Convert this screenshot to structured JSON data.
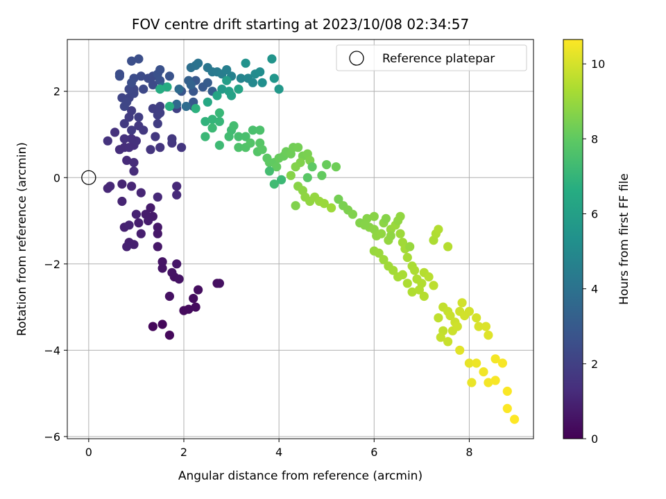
{
  "chart_data": {
    "type": "scatter",
    "title": "FOV centre drift starting at 2023/10/08 02:34:57",
    "xlabel": "Angular distance from reference (arcmin)",
    "ylabel": "Rotation from reference (arcmin)",
    "xlim": [
      -0.45,
      9.35
    ],
    "ylim": [
      -6.05,
      3.2
    ],
    "xticks": [
      0,
      2,
      4,
      6,
      8
    ],
    "yticks": [
      -6,
      -4,
      -2,
      0,
      2
    ],
    "xtick_labels": [
      "0",
      "2",
      "4",
      "6",
      "8"
    ],
    "ytick_labels": [
      "−6",
      "−4",
      "−2",
      "0",
      "2"
    ],
    "grid": true,
    "legend": {
      "position": "top-right",
      "entries": [
        "Reference platepar"
      ]
    },
    "colormap": "viridis",
    "colorbar": {
      "label": "Hours from first FF file",
      "range": [
        0,
        10.65
      ],
      "ticks": [
        0,
        2,
        4,
        6,
        8,
        10
      ],
      "tick_labels": [
        "0",
        "2",
        "4",
        "6",
        "8",
        "10"
      ]
    },
    "reference_point": {
      "x": 0,
      "y": 0
    },
    "points": [
      [
        1.35,
        -3.45,
        0.2
      ],
      [
        1.55,
        -3.4,
        0.2
      ],
      [
        1.7,
        -3.65,
        0.25
      ],
      [
        2.0,
        -3.08,
        0.3
      ],
      [
        2.1,
        -3.05,
        0.3
      ],
      [
        2.2,
        -2.8,
        0.35
      ],
      [
        2.25,
        -3.0,
        0.35
      ],
      [
        2.3,
        -2.6,
        0.4
      ],
      [
        2.7,
        -2.45,
        0.4
      ],
      [
        2.75,
        -2.45,
        0.45
      ],
      [
        1.7,
        -2.75,
        0.5
      ],
      [
        1.8,
        -2.3,
        0.5
      ],
      [
        1.9,
        -2.35,
        0.55
      ],
      [
        1.75,
        -2.2,
        0.55
      ],
      [
        1.55,
        -2.1,
        0.6
      ],
      [
        1.55,
        -1.95,
        0.6
      ],
      [
        1.85,
        -2.0,
        0.65
      ],
      [
        1.45,
        -1.6,
        0.7
      ],
      [
        1.45,
        -1.3,
        0.7
      ],
      [
        1.45,
        -1.15,
        0.75
      ],
      [
        1.35,
        -0.9,
        0.8
      ],
      [
        1.3,
        -0.7,
        0.8
      ],
      [
        1.2,
        -0.85,
        0.85
      ],
      [
        1.25,
        -1.0,
        0.85
      ],
      [
        1.05,
        -1.05,
        0.9
      ],
      [
        1.1,
        -1.3,
        0.9
      ],
      [
        0.95,
        -1.55,
        0.95
      ],
      [
        0.85,
        -1.5,
        0.95
      ],
      [
        0.8,
        -1.6,
        1.0
      ],
      [
        0.75,
        -1.15,
        1.0
      ],
      [
        0.85,
        -1.1,
        1.05
      ],
      [
        1.0,
        -0.85,
        1.05
      ],
      [
        0.7,
        -0.55,
        1.1
      ],
      [
        0.7,
        -0.15,
        1.1
      ],
      [
        0.9,
        -0.2,
        1.15
      ],
      [
        1.1,
        -0.35,
        1.15
      ],
      [
        0.45,
        -0.2,
        1.2
      ],
      [
        0.4,
        -0.25,
        1.2
      ],
      [
        1.45,
        -0.45,
        1.25
      ],
      [
        1.85,
        -0.2,
        1.25
      ],
      [
        1.85,
        -0.4,
        1.3
      ],
      [
        0.8,
        0.4,
        1.3
      ],
      [
        0.95,
        0.35,
        1.35
      ],
      [
        0.95,
        0.15,
        1.35
      ],
      [
        0.65,
        0.65,
        1.4
      ],
      [
        0.75,
        0.7,
        1.4
      ],
      [
        0.85,
        0.7,
        1.45
      ],
      [
        0.95,
        0.75,
        1.45
      ],
      [
        1.0,
        0.85,
        1.5
      ],
      [
        0.9,
        0.9,
        1.5
      ],
      [
        0.75,
        0.9,
        1.55
      ],
      [
        0.55,
        1.05,
        1.55
      ],
      [
        0.4,
        0.85,
        1.6
      ],
      [
        1.3,
        0.65,
        1.65
      ],
      [
        1.5,
        0.7,
        1.65
      ],
      [
        1.95,
        0.7,
        1.7
      ],
      [
        1.75,
        0.8,
        1.7
      ],
      [
        1.75,
        0.9,
        1.75
      ],
      [
        1.4,
        0.95,
        1.75
      ],
      [
        1.15,
        1.1,
        1.8
      ],
      [
        1.05,
        1.2,
        1.8
      ],
      [
        0.9,
        1.1,
        1.85
      ],
      [
        0.75,
        1.25,
        1.85
      ],
      [
        0.85,
        1.4,
        1.9
      ],
      [
        0.9,
        1.55,
        1.9
      ],
      [
        1.05,
        1.4,
        1.95
      ],
      [
        1.45,
        1.25,
        1.95
      ],
      [
        1.45,
        1.45,
        2.0
      ],
      [
        1.35,
        1.6,
        2.0
      ],
      [
        1.5,
        1.65,
        2.05
      ],
      [
        1.5,
        1.5,
        2.05
      ],
      [
        1.85,
        1.6,
        2.1
      ],
      [
        2.2,
        1.65,
        2.15
      ],
      [
        0.85,
        1.85,
        2.2
      ],
      [
        0.7,
        1.85,
        2.2
      ],
      [
        0.75,
        1.65,
        2.25
      ],
      [
        0.8,
        1.75,
        2.25
      ],
      [
        0.95,
        1.95,
        2.3
      ],
      [
        0.95,
        2.05,
        2.3
      ],
      [
        0.85,
        2.05,
        2.35
      ],
      [
        1.15,
        2.05,
        2.35
      ],
      [
        1.35,
        2.15,
        2.4
      ],
      [
        1.25,
        2.3,
        2.4
      ],
      [
        1.35,
        2.35,
        2.45
      ],
      [
        1.1,
        2.35,
        2.45
      ],
      [
        0.95,
        2.3,
        2.5
      ],
      [
        0.65,
        2.4,
        2.5
      ],
      [
        0.65,
        2.35,
        2.55
      ],
      [
        0.9,
        2.2,
        2.55
      ],
      [
        0.9,
        2.7,
        2.6
      ],
      [
        1.05,
        2.75,
        2.6
      ],
      [
        1.45,
        2.4,
        2.65
      ],
      [
        1.5,
        2.5,
        2.65
      ],
      [
        1.5,
        2.25,
        2.7
      ],
      [
        1.7,
        2.35,
        2.75
      ],
      [
        1.95,
        2.0,
        2.8
      ],
      [
        2.2,
        2.0,
        2.85
      ],
      [
        2.2,
        1.75,
        2.9
      ],
      [
        2.25,
        2.25,
        2.95
      ],
      [
        2.4,
        2.1,
        3.0
      ],
      [
        2.5,
        2.2,
        3.1
      ],
      [
        2.6,
        2.0,
        3.2
      ],
      [
        2.1,
        2.25,
        3.3
      ],
      [
        2.15,
        2.15,
        3.4
      ],
      [
        1.55,
        2.1,
        3.5
      ],
      [
        1.85,
        1.7,
        3.6
      ],
      [
        1.9,
        2.05,
        3.7
      ],
      [
        2.05,
        1.65,
        3.8
      ],
      [
        2.15,
        2.55,
        3.9
      ],
      [
        2.25,
        2.6,
        4.0
      ],
      [
        2.3,
        2.65,
        4.1
      ],
      [
        2.5,
        2.55,
        4.2
      ],
      [
        2.6,
        2.45,
        4.3
      ],
      [
        2.7,
        2.45,
        4.4
      ],
      [
        2.8,
        2.4,
        4.5
      ],
      [
        2.9,
        2.5,
        4.6
      ],
      [
        3.0,
        2.35,
        4.7
      ],
      [
        3.2,
        2.3,
        4.8
      ],
      [
        3.35,
        2.3,
        4.9
      ],
      [
        3.45,
        2.2,
        5.0
      ],
      [
        3.5,
        2.4,
        5.1
      ],
      [
        3.6,
        2.45,
        5.2
      ],
      [
        3.65,
        2.2,
        5.3
      ],
      [
        3.3,
        2.65,
        5.4
      ],
      [
        3.85,
        2.75,
        5.5
      ],
      [
        3.9,
        2.3,
        5.6
      ],
      [
        4.0,
        2.05,
        5.7
      ],
      [
        2.8,
        2.05,
        5.8
      ],
      [
        2.9,
        2.25,
        5.9
      ],
      [
        2.95,
        2.0,
        6.0
      ],
      [
        3.0,
        1.9,
        6.1
      ],
      [
        3.15,
        2.05,
        6.2
      ],
      [
        2.7,
        1.9,
        6.3
      ],
      [
        2.5,
        1.75,
        6.4
      ],
      [
        1.65,
        2.1,
        6.5
      ],
      [
        1.5,
        2.05,
        6.6
      ],
      [
        1.7,
        1.65,
        6.7
      ],
      [
        2.25,
        1.6,
        6.8
      ],
      [
        2.45,
        1.3,
        6.9
      ],
      [
        2.6,
        1.35,
        7.0
      ],
      [
        2.75,
        1.3,
        7.05
      ],
      [
        2.75,
        1.5,
        7.1
      ],
      [
        2.45,
        0.95,
        7.15
      ],
      [
        2.6,
        1.15,
        7.2
      ],
      [
        2.75,
        0.75,
        7.25
      ],
      [
        3.0,
        1.1,
        7.3
      ],
      [
        2.95,
        0.95,
        7.35
      ],
      [
        3.05,
        1.2,
        7.4
      ],
      [
        3.15,
        0.95,
        7.45
      ],
      [
        3.3,
        0.95,
        7.5
      ],
      [
        3.45,
        1.1,
        7.55
      ],
      [
        3.6,
        1.1,
        7.6
      ],
      [
        3.15,
        0.7,
        7.65
      ],
      [
        3.3,
        0.7,
        7.7
      ],
      [
        3.4,
        0.8,
        7.75
      ],
      [
        3.55,
        0.6,
        7.8
      ],
      [
        3.6,
        0.8,
        7.85
      ],
      [
        3.65,
        0.65,
        7.9
      ],
      [
        3.75,
        0.45,
        7.95
      ],
      [
        3.8,
        0.35,
        8.0
      ],
      [
        3.9,
        0.35,
        8.05
      ],
      [
        3.95,
        0.25,
        8.1
      ],
      [
        4.0,
        0.45,
        8.15
      ],
      [
        4.1,
        0.5,
        8.2
      ],
      [
        4.15,
        0.6,
        8.25
      ],
      [
        4.25,
        0.55,
        8.3
      ],
      [
        4.3,
        0.7,
        8.35
      ],
      [
        4.4,
        0.7,
        8.4
      ],
      [
        4.5,
        0.5,
        8.45
      ],
      [
        4.6,
        0.55,
        8.5
      ],
      [
        4.65,
        0.4,
        8.55
      ],
      [
        4.45,
        0.35,
        8.6
      ],
      [
        4.35,
        0.25,
        8.65
      ],
      [
        4.25,
        0.05,
        8.7
      ],
      [
        4.4,
        -0.2,
        8.75
      ],
      [
        4.5,
        -0.3,
        8.8
      ],
      [
        4.55,
        -0.45,
        8.85
      ],
      [
        4.65,
        -0.55,
        8.9
      ],
      [
        4.75,
        -0.45,
        8.95
      ],
      [
        4.85,
        -0.55,
        9.0
      ],
      [
        4.95,
        -0.6,
        9.05
      ],
      [
        5.1,
        -0.7,
        9.1
      ],
      [
        4.05,
        -0.05,
        7.2
      ],
      [
        3.9,
        -0.15,
        7.3
      ],
      [
        3.8,
        0.15,
        7.4
      ],
      [
        4.35,
        -0.65,
        8.6
      ],
      [
        4.6,
        0.0,
        7.9
      ],
      [
        4.7,
        0.25,
        8.0
      ],
      [
        4.9,
        0.05,
        8.1
      ],
      [
        5.0,
        0.3,
        8.2
      ],
      [
        5.2,
        0.25,
        8.3
      ],
      [
        5.25,
        -0.5,
        8.4
      ],
      [
        5.35,
        -0.65,
        8.5
      ],
      [
        5.45,
        -0.75,
        8.55
      ],
      [
        5.55,
        -0.85,
        8.6
      ],
      [
        5.7,
        -1.05,
        8.65
      ],
      [
        5.85,
        -0.95,
        8.7
      ],
      [
        5.9,
        -1.15,
        8.75
      ],
      [
        6.0,
        -1.2,
        8.8
      ],
      [
        6.05,
        -1.35,
        8.85
      ],
      [
        6.15,
        -1.3,
        8.9
      ],
      [
        6.3,
        -1.45,
        8.95
      ],
      [
        6.35,
        -1.2,
        9.0
      ],
      [
        6.45,
        -1.1,
        9.05
      ],
      [
        6.55,
        -1.3,
        9.1
      ],
      [
        6.6,
        -1.5,
        9.15
      ],
      [
        6.65,
        -1.65,
        9.2
      ],
      [
        6.7,
        -1.85,
        9.25
      ],
      [
        6.8,
        -2.05,
        9.3
      ],
      [
        6.85,
        -2.15,
        9.35
      ],
      [
        6.9,
        -2.35,
        9.4
      ],
      [
        7.0,
        -2.45,
        9.45
      ],
      [
        7.05,
        -2.2,
        9.5
      ],
      [
        7.15,
        -2.3,
        9.55
      ],
      [
        7.25,
        -2.5,
        9.6
      ],
      [
        7.35,
        -3.25,
        9.65
      ],
      [
        7.45,
        -3.0,
        9.7
      ],
      [
        7.55,
        -3.1,
        9.75
      ],
      [
        7.6,
        -3.2,
        9.8
      ],
      [
        7.7,
        -3.35,
        9.85
      ],
      [
        7.8,
        -3.1,
        9.9
      ],
      [
        7.9,
        -3.2,
        9.95
      ],
      [
        7.45,
        -3.55,
        9.7
      ],
      [
        7.4,
        -3.7,
        9.75
      ],
      [
        7.55,
        -3.8,
        9.8
      ],
      [
        7.65,
        -3.55,
        9.85
      ],
      [
        7.75,
        -3.45,
        9.9
      ],
      [
        7.85,
        -2.9,
        9.95
      ],
      [
        8.0,
        -3.1,
        9.95
      ],
      [
        8.15,
        -3.25,
        10.0
      ],
      [
        8.2,
        -3.45,
        10.05
      ],
      [
        8.35,
        -3.45,
        10.1
      ],
      [
        8.4,
        -3.65,
        10.15
      ],
      [
        7.8,
        -4.0,
        10.2
      ],
      [
        8.0,
        -4.3,
        10.3
      ],
      [
        8.05,
        -4.75,
        10.35
      ],
      [
        8.15,
        -4.3,
        10.4
      ],
      [
        8.3,
        -4.5,
        10.45
      ],
      [
        8.4,
        -4.75,
        10.5
      ],
      [
        8.55,
        -4.7,
        10.55
      ],
      [
        8.55,
        -4.2,
        10.5
      ],
      [
        8.7,
        -4.3,
        10.55
      ],
      [
        8.8,
        -4.95,
        10.6
      ],
      [
        8.8,
        -5.35,
        10.62
      ],
      [
        8.95,
        -5.6,
        10.65
      ],
      [
        6.0,
        -1.7,
        9.0
      ],
      [
        6.1,
        -1.75,
        9.05
      ],
      [
        6.2,
        -1.9,
        9.1
      ],
      [
        6.3,
        -2.05,
        9.15
      ],
      [
        6.4,
        -2.15,
        9.2
      ],
      [
        6.5,
        -2.3,
        9.25
      ],
      [
        6.6,
        -2.25,
        9.3
      ],
      [
        6.7,
        -2.45,
        9.35
      ],
      [
        6.8,
        -2.65,
        9.4
      ],
      [
        6.95,
        -2.6,
        9.45
      ],
      [
        7.05,
        -2.75,
        9.5
      ],
      [
        7.25,
        -1.45,
        9.35
      ],
      [
        7.3,
        -1.3,
        9.4
      ],
      [
        7.35,
        -1.2,
        9.45
      ],
      [
        7.55,
        -1.6,
        9.5
      ],
      [
        6.2,
        -1.05,
        8.8
      ],
      [
        6.35,
        -1.35,
        8.85
      ],
      [
        6.55,
        -0.9,
        8.9
      ],
      [
        6.75,
        -1.6,
        9.0
      ],
      [
        6.0,
        -0.9,
        8.75
      ],
      [
        5.8,
        -1.1,
        8.7
      ],
      [
        6.25,
        -0.95,
        8.7
      ],
      [
        6.5,
        -1.0,
        8.9
      ]
    ]
  }
}
